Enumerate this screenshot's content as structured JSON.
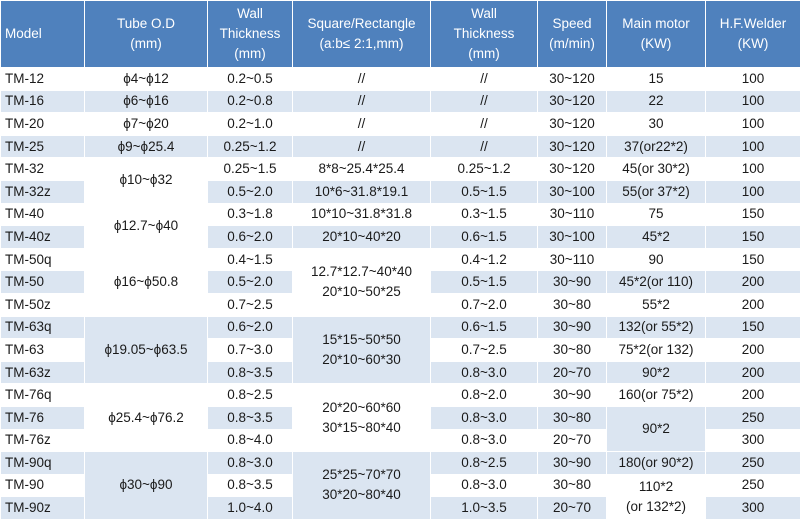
{
  "table": {
    "header": [
      [
        "Model"
      ],
      [
        "Tube O.D",
        "(mm)"
      ],
      [
        "Wall",
        "Thickness",
        "(mm)"
      ],
      [
        "Square/Rectangle",
        "(a:b≤ 2:1,mm)"
      ],
      [
        "Wall",
        "Thickness",
        "(mm)"
      ],
      [
        "Speed",
        "(m/min)"
      ],
      [
        "Main motor",
        "(KW)"
      ],
      [
        "H.F.Welder",
        "(KW)"
      ]
    ],
    "rows": [
      [
        {
          "lines": [
            "TM-12"
          ]
        },
        {
          "lines": [
            "ϕ4~ϕ12"
          ]
        },
        {
          "lines": [
            "0.2~0.5"
          ]
        },
        {
          "lines": [
            "//"
          ]
        },
        {
          "lines": [
            "//"
          ]
        },
        {
          "lines": [
            "30~120"
          ]
        },
        {
          "lines": [
            "15"
          ]
        },
        {
          "lines": [
            "100"
          ]
        }
      ],
      [
        {
          "lines": [
            "TM-16"
          ]
        },
        {
          "lines": [
            "ϕ6~ϕ16"
          ]
        },
        {
          "lines": [
            "0.2~0.8"
          ]
        },
        {
          "lines": [
            "//"
          ]
        },
        {
          "lines": [
            "//"
          ]
        },
        {
          "lines": [
            "30~120"
          ]
        },
        {
          "lines": [
            "22"
          ]
        },
        {
          "lines": [
            "100"
          ]
        }
      ],
      [
        {
          "lines": [
            "TM-20"
          ]
        },
        {
          "lines": [
            "ϕ7~ϕ20"
          ]
        },
        {
          "lines": [
            "0.2~1.0"
          ]
        },
        {
          "lines": [
            "//"
          ]
        },
        {
          "lines": [
            "//"
          ]
        },
        {
          "lines": [
            "30~120"
          ]
        },
        {
          "lines": [
            "30"
          ]
        },
        {
          "lines": [
            "100"
          ]
        }
      ],
      [
        {
          "lines": [
            "TM-25"
          ]
        },
        {
          "lines": [
            "ϕ9~ϕ25.4"
          ]
        },
        {
          "lines": [
            "0.25~1.2"
          ]
        },
        {
          "lines": [
            "//"
          ]
        },
        {
          "lines": [
            "//"
          ]
        },
        {
          "lines": [
            "30~120"
          ]
        },
        {
          "lines": [
            "37(or22*2)"
          ]
        },
        {
          "lines": [
            "100"
          ]
        }
      ],
      [
        {
          "lines": [
            "TM-32"
          ]
        },
        {
          "lines": [
            "ϕ10~ϕ32"
          ],
          "rowspan": 2
        },
        {
          "lines": [
            "0.25~1.5"
          ]
        },
        {
          "lines": [
            "8*8~25.4*25.4"
          ]
        },
        {
          "lines": [
            "0.25~1.2"
          ]
        },
        {
          "lines": [
            "30~120"
          ]
        },
        {
          "lines": [
            "45(or 30*2)"
          ]
        },
        {
          "lines": [
            "100"
          ]
        }
      ],
      [
        {
          "lines": [
            "TM-32z"
          ]
        },
        {
          "lines": [
            "0.5~2.0"
          ]
        },
        {
          "lines": [
            "10*6~31.8*19.1"
          ]
        },
        {
          "lines": [
            "0.5~1.5"
          ]
        },
        {
          "lines": [
            "30~100"
          ]
        },
        {
          "lines": [
            "55(or 37*2)"
          ]
        },
        {
          "lines": [
            "100"
          ]
        }
      ],
      [
        {
          "lines": [
            "TM-40"
          ]
        },
        {
          "lines": [
            "ϕ12.7~ϕ40"
          ],
          "rowspan": 2
        },
        {
          "lines": [
            "0.3~1.8"
          ]
        },
        {
          "lines": [
            "10*10~31.8*31.8"
          ]
        },
        {
          "lines": [
            "0.3~1.5"
          ]
        },
        {
          "lines": [
            "30~110"
          ]
        },
        {
          "lines": [
            "75"
          ]
        },
        {
          "lines": [
            "150"
          ]
        }
      ],
      [
        {
          "lines": [
            "TM-40z"
          ]
        },
        {
          "lines": [
            "0.6~2.0"
          ]
        },
        {
          "lines": [
            "20*10~40*20"
          ]
        },
        {
          "lines": [
            "0.6~1.5"
          ]
        },
        {
          "lines": [
            "30~100"
          ]
        },
        {
          "lines": [
            "45*2"
          ]
        },
        {
          "lines": [
            "150"
          ]
        }
      ],
      [
        {
          "lines": [
            "TM-50q"
          ]
        },
        {
          "lines": [
            "ϕ16~ϕ50.8"
          ],
          "rowspan": 3
        },
        {
          "lines": [
            "0.4~1.5"
          ]
        },
        {
          "lines": [
            "12.7*12.7~40*40",
            "20*10~50*25"
          ],
          "rowspan": 3
        },
        {
          "lines": [
            "0.4~1.2"
          ]
        },
        {
          "lines": [
            "30~110"
          ]
        },
        {
          "lines": [
            "90"
          ]
        },
        {
          "lines": [
            "150"
          ]
        }
      ],
      [
        {
          "lines": [
            "TM-50"
          ]
        },
        {
          "lines": [
            "0.5~2.0"
          ]
        },
        {
          "lines": [
            "0.5~1.5"
          ]
        },
        {
          "lines": [
            "30~90"
          ]
        },
        {
          "lines": [
            "45*2(or 110)"
          ]
        },
        {
          "lines": [
            "200"
          ]
        }
      ],
      [
        {
          "lines": [
            "TM-50z"
          ]
        },
        {
          "lines": [
            "0.7~2.5"
          ]
        },
        {
          "lines": [
            "0.7~2.0"
          ]
        },
        {
          "lines": [
            "30~80"
          ]
        },
        {
          "lines": [
            "55*2"
          ]
        },
        {
          "lines": [
            "200"
          ]
        }
      ],
      [
        {
          "lines": [
            "TM-63q"
          ]
        },
        {
          "lines": [
            "ϕ19.05~ϕ63.5"
          ],
          "rowspan": 3
        },
        {
          "lines": [
            "0.6~2.0"
          ]
        },
        {
          "lines": [
            "15*15~50*50",
            "20*10~60*30"
          ],
          "rowspan": 3
        },
        {
          "lines": [
            "0.6~1.5"
          ]
        },
        {
          "lines": [
            "30~90"
          ]
        },
        {
          "lines": [
            "132(or 55*2)"
          ]
        },
        {
          "lines": [
            "150"
          ]
        }
      ],
      [
        {
          "lines": [
            "TM-63"
          ]
        },
        {
          "lines": [
            "0.7~3.0"
          ]
        },
        {
          "lines": [
            "0.7~2.5"
          ]
        },
        {
          "lines": [
            "30~80"
          ]
        },
        {
          "lines": [
            "75*2(or 132)"
          ]
        },
        {
          "lines": [
            "200"
          ]
        }
      ],
      [
        {
          "lines": [
            "TM-63z"
          ]
        },
        {
          "lines": [
            "0.8~3.5"
          ]
        },
        {
          "lines": [
            "0.8~3.0"
          ]
        },
        {
          "lines": [
            "20~70"
          ]
        },
        {
          "lines": [
            "90*2"
          ]
        },
        {
          "lines": [
            "200"
          ]
        }
      ],
      [
        {
          "lines": [
            "TM-76q"
          ]
        },
        {
          "lines": [
            "ϕ25.4~ϕ76.2"
          ],
          "rowspan": 3
        },
        {
          "lines": [
            "0.8~2.5"
          ]
        },
        {
          "lines": [
            "20*20~60*60",
            "30*15~80*40"
          ],
          "rowspan": 3
        },
        {
          "lines": [
            "0.8~2.0"
          ]
        },
        {
          "lines": [
            "30~90"
          ]
        },
        {
          "lines": [
            "160(or 75*2)"
          ]
        },
        {
          "lines": [
            "200"
          ]
        }
      ],
      [
        {
          "lines": [
            "TM-76"
          ]
        },
        {
          "lines": [
            "0.8~3.5"
          ]
        },
        {
          "lines": [
            "0.8~3.0"
          ]
        },
        {
          "lines": [
            "30~80"
          ]
        },
        {
          "lines": [
            "90*2"
          ],
          "rowspan": 2
        },
        {
          "lines": [
            "250"
          ]
        }
      ],
      [
        {
          "lines": [
            "TM-76z"
          ]
        },
        {
          "lines": [
            "0.8~4.0"
          ]
        },
        {
          "lines": [
            "0.8~3.0"
          ]
        },
        {
          "lines": [
            "20~70"
          ]
        },
        {
          "lines": [
            "300"
          ]
        }
      ],
      [
        {
          "lines": [
            "TM-90q"
          ]
        },
        {
          "lines": [
            "ϕ30~ϕ90"
          ],
          "rowspan": 3
        },
        {
          "lines": [
            "0.8~3.0"
          ]
        },
        {
          "lines": [
            "25*25~70*70",
            "30*20~80*40"
          ],
          "rowspan": 3
        },
        {
          "lines": [
            "0.8~2.5"
          ]
        },
        {
          "lines": [
            "30~90"
          ]
        },
        {
          "lines": [
            "180(or 90*2)"
          ]
        },
        {
          "lines": [
            "250"
          ]
        }
      ],
      [
        {
          "lines": [
            "TM-90"
          ]
        },
        {
          "lines": [
            "0.8~3.5"
          ]
        },
        {
          "lines": [
            "0.8~3.0"
          ]
        },
        {
          "lines": [
            "30~80"
          ]
        },
        {
          "lines": [
            "110*2",
            "(or 132*2)"
          ],
          "rowspan": 2
        },
        {
          "lines": [
            "250"
          ]
        }
      ],
      [
        {
          "lines": [
            "TM-90z"
          ]
        },
        {
          "lines": [
            "1.0~4.0"
          ]
        },
        {
          "lines": [
            "1.0~3.5"
          ]
        },
        {
          "lines": [
            "20~70"
          ]
        },
        {
          "lines": [
            "300"
          ]
        }
      ]
    ]
  }
}
